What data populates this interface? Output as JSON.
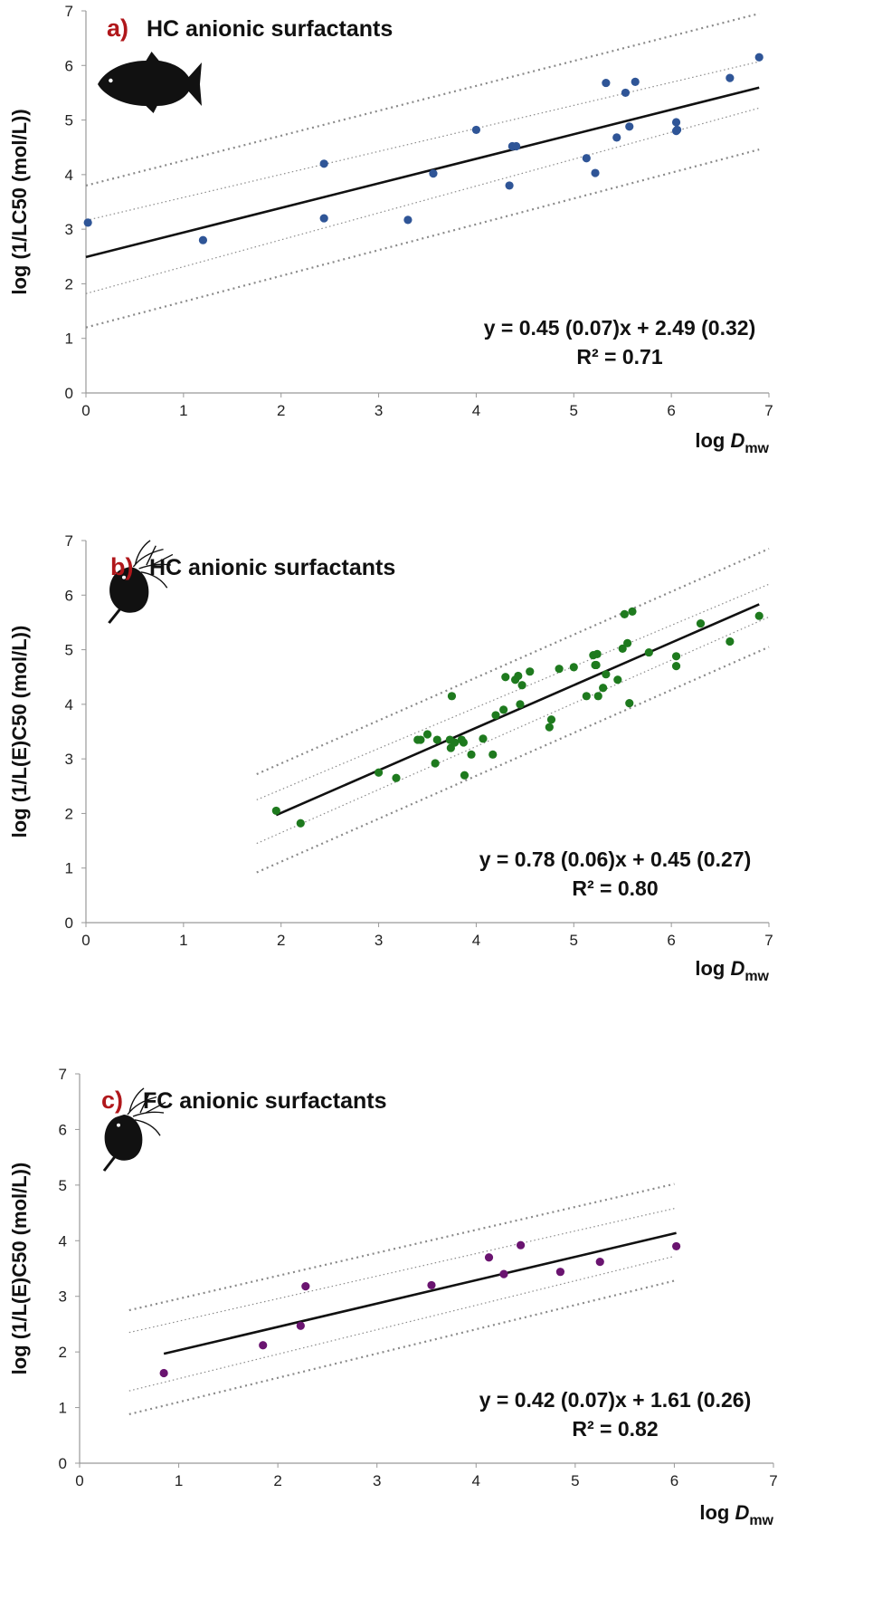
{
  "figure": {
    "background": "#ffffff"
  },
  "chart_data": [
    {
      "type": "scatter",
      "panel_letter": "a)",
      "title": "HC anionic surfactants",
      "organism_icon": "fish-silhouette-icon",
      "xlabel": "log D",
      "xlabel_subscript": "mw",
      "ylabel": "log (1/LC50 (mol/L))",
      "xlim": [
        0,
        7
      ],
      "ylim": [
        0,
        7
      ],
      "xticks": [
        "0",
        "1",
        "2",
        "3",
        "4",
        "5",
        "6",
        "7"
      ],
      "yticks": [
        "0",
        "1",
        "2",
        "3",
        "4",
        "5",
        "6",
        "7"
      ],
      "grid": false,
      "point_color": "#2f5597",
      "series": [
        {
          "x": [
            0.02,
            1.2,
            2.44,
            2.44,
            3.3,
            3.56,
            4.0,
            4.34,
            4.37,
            4.41,
            5.13,
            5.22,
            5.33,
            5.44,
            5.53,
            5.57,
            5.63,
            6.05,
            6.05,
            6.06,
            6.6,
            6.9
          ],
          "y": [
            3.12,
            2.8,
            4.2,
            3.2,
            3.17,
            4.02,
            4.82,
            3.8,
            4.52,
            4.52,
            4.3,
            4.03,
            5.68,
            4.68,
            5.5,
            4.88,
            5.7,
            4.96,
            4.8,
            4.82,
            5.77,
            6.15
          ]
        }
      ],
      "fit_line": {
        "slope": 0.45,
        "intercept": 2.49,
        "x_range": [
          0,
          6.9
        ]
      },
      "conf_band_inner": {
        "upper": [
          [
            0,
            3.16
          ],
          [
            6.9,
            6.07
          ]
        ],
        "lower": [
          [
            0,
            1.82
          ],
          [
            6.9,
            5.22
          ]
        ]
      },
      "pred_band_outer": {
        "upper": [
          [
            0,
            3.8
          ],
          [
            6.9,
            6.95
          ]
        ],
        "lower": [
          [
            0,
            1.2
          ],
          [
            6.9,
            4.46
          ]
        ]
      },
      "equation": "y = 0.45 (0.07)x + 2.49 (0.32)",
      "r2": "R² = 0.71"
    },
    {
      "type": "scatter",
      "panel_letter": "b)",
      "title": "HC anionic surfactants",
      "organism_icon": "daphnia-silhouette-icon",
      "xlabel": "log D",
      "xlabel_subscript": "mw",
      "ylabel": "log (1/L(E)C50 (mol/L))",
      "xlim": [
        0,
        7
      ],
      "ylim": [
        0,
        7
      ],
      "xticks": [
        "0",
        "1",
        "2",
        "3",
        "4",
        "5",
        "6",
        "7"
      ],
      "yticks": [
        "0",
        "1",
        "2",
        "3",
        "4",
        "5",
        "6",
        "7"
      ],
      "grid": false,
      "point_color": "#1e7a1e",
      "series": [
        {
          "x": [
            1.95,
            2.2,
            3.0,
            3.18,
            3.4,
            3.43,
            3.5,
            3.58,
            3.6,
            3.73,
            3.74,
            3.75,
            3.78,
            3.85,
            3.87,
            3.88,
            3.95,
            4.07,
            4.17,
            4.2,
            4.28,
            4.3,
            4.4,
            4.43,
            4.45,
            4.47,
            4.55,
            4.75,
            4.77,
            4.85,
            5.0,
            5.13,
            5.2,
            5.22,
            5.23,
            5.24,
            5.25,
            5.3,
            5.33,
            5.45,
            5.5,
            5.52,
            5.55,
            5.57,
            5.6,
            5.77,
            6.05,
            6.05,
            6.3,
            6.6,
            6.9
          ],
          "y": [
            2.05,
            1.82,
            2.75,
            2.65,
            3.35,
            3.35,
            3.45,
            2.92,
            3.35,
            3.35,
            3.2,
            4.15,
            3.3,
            3.35,
            3.3,
            2.7,
            3.08,
            3.37,
            3.08,
            3.8,
            3.9,
            4.5,
            4.45,
            4.52,
            4.0,
            4.35,
            4.6,
            3.58,
            3.72,
            4.65,
            4.68,
            4.15,
            4.9,
            4.72,
            4.72,
            4.92,
            4.15,
            4.3,
            4.55,
            4.45,
            5.02,
            5.65,
            5.12,
            4.02,
            5.7,
            4.95,
            4.88,
            4.7,
            5.48,
            5.15,
            5.62
          ]
        }
      ],
      "fit_line": {
        "slope": 0.78,
        "intercept": 0.45,
        "x_range": [
          1.95,
          6.9
        ]
      },
      "conf_band_inner": {
        "upper": [
          [
            1.75,
            2.25
          ],
          [
            7.0,
            6.2
          ]
        ],
        "lower": [
          [
            1.75,
            1.45
          ],
          [
            7.0,
            5.6
          ]
        ]
      },
      "pred_band_outer": {
        "upper": [
          [
            1.75,
            2.72
          ],
          [
            7.0,
            6.85
          ]
        ],
        "lower": [
          [
            1.75,
            0.92
          ],
          [
            7.0,
            5.05
          ]
        ]
      },
      "equation": "y = 0.78 (0.06)x + 0.45 (0.27)",
      "r2": "R² = 0.80"
    },
    {
      "type": "scatter",
      "panel_letter": "c)",
      "title": "FC anionic surfactants",
      "organism_icon": "daphnia-silhouette-icon",
      "xlabel": "log D",
      "xlabel_subscript": "mw",
      "ylabel": "log (1/L(E)C50 (mol/L))",
      "xlim": [
        0,
        7
      ],
      "ylim": [
        0,
        7
      ],
      "xticks": [
        "0",
        "1",
        "2",
        "3",
        "4",
        "5",
        "6",
        "7"
      ],
      "yticks": [
        "0",
        "1",
        "2",
        "3",
        "4",
        "5",
        "6",
        "7"
      ],
      "grid": false,
      "point_color": "#6a1470",
      "series": [
        {
          "x": [
            0.85,
            1.85,
            2.23,
            2.28,
            3.55,
            4.13,
            4.28,
            4.45,
            4.85,
            5.25,
            6.02
          ],
          "y": [
            1.62,
            2.12,
            2.47,
            3.18,
            3.2,
            3.7,
            3.4,
            3.92,
            3.44,
            3.62,
            3.9
          ]
        }
      ],
      "fit_line": {
        "slope": 0.42,
        "intercept": 1.61,
        "x_range": [
          0.85,
          6.02
        ]
      },
      "conf_band_inner": {
        "upper": [
          [
            0.5,
            2.35
          ],
          [
            6.0,
            4.58
          ]
        ],
        "lower": [
          [
            0.5,
            1.3
          ],
          [
            6.0,
            3.72
          ]
        ]
      },
      "pred_band_outer": {
        "upper": [
          [
            0.5,
            2.75
          ],
          [
            6.0,
            5.02
          ]
        ],
        "lower": [
          [
            0.5,
            0.88
          ],
          [
            6.0,
            3.28
          ]
        ]
      },
      "equation": "y = 0.42 (0.07)x + 1.61 (0.26)",
      "r2": "R² = 0.82"
    }
  ]
}
